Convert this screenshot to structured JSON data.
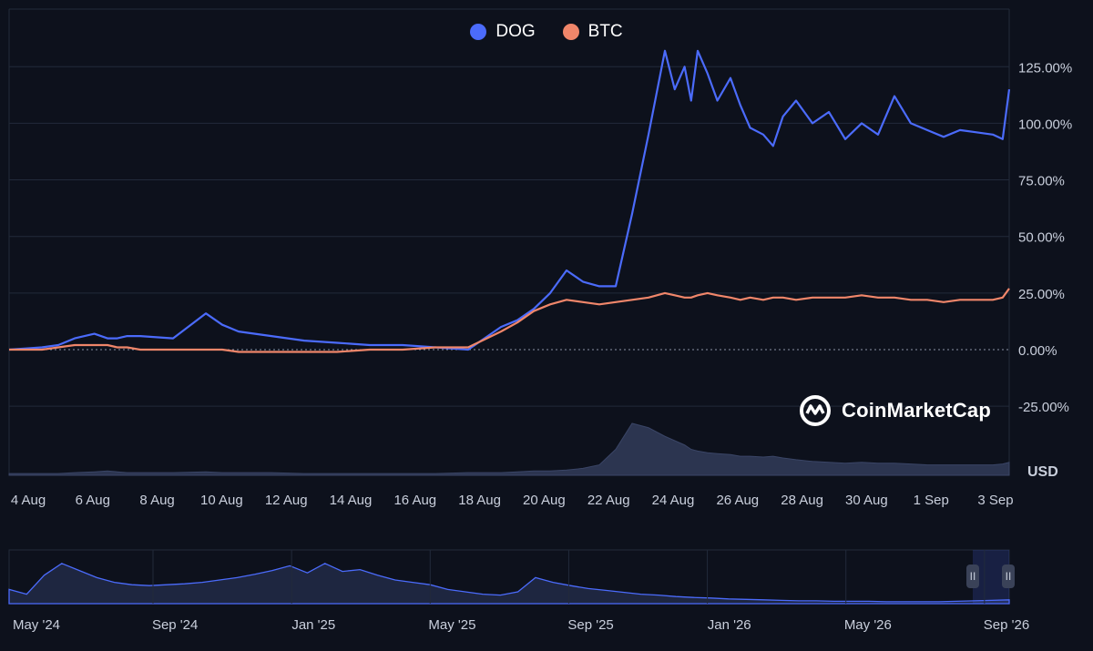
{
  "legend": [
    {
      "name": "DOG",
      "color": "#4b6bfb"
    },
    {
      "name": "BTC",
      "color": "#f0866a"
    }
  ],
  "brand": {
    "name": "CoinMarketCap",
    "icon": "coinmarketcap-logo-icon"
  },
  "unit": "USD",
  "navigator": {
    "labels": [
      "May '24",
      "Sep '24",
      "Jan '25",
      "May '25",
      "Sep '25",
      "Jan '26",
      "May '26",
      "Sep '26"
    ],
    "handle_left": "II",
    "handle_right": "II"
  },
  "colors": {
    "background": "#0d111c",
    "grid": "#222a3a",
    "dog": "#4b6bfb",
    "btc": "#f0866a",
    "volume": "#2c3550",
    "axis_text": "#c9cfdc"
  },
  "chart_data": {
    "type": "line",
    "title": "",
    "xlabel": "",
    "ylabel": "",
    "x_ticks": [
      "4 Aug",
      "6 Aug",
      "8 Aug",
      "10 Aug",
      "12 Aug",
      "14 Aug",
      "16 Aug",
      "18 Aug",
      "20 Aug",
      "22 Aug",
      "24 Aug",
      "26 Aug",
      "28 Aug",
      "30 Aug",
      "1 Sep",
      "3 Sep"
    ],
    "y_ticks": [
      "125.00%",
      "100.00%",
      "75.00%",
      "50.00%",
      "25.00%",
      "0.00%",
      "-25.00%"
    ],
    "ylim": [
      -30,
      145
    ],
    "x_range_days": [
      0,
      30.5
    ],
    "x": [
      0,
      1,
      1.5,
      2,
      2.6,
      3,
      3.3,
      3.6,
      4,
      5,
      6,
      6.5,
      7,
      8,
      9,
      10,
      11,
      12,
      13,
      14,
      15,
      15.5,
      16,
      16.5,
      17,
      17.5,
      18,
      18.5,
      19,
      19.5,
      20,
      20.3,
      20.6,
      20.8,
      21,
      21.3,
      21.6,
      22,
      22.3,
      22.6,
      23,
      23.3,
      23.6,
      24,
      24.5,
      25,
      25.5,
      26,
      26.5,
      27,
      27.5,
      28,
      28.5,
      29,
      29.5,
      30,
      30.3,
      30.5
    ],
    "series": [
      {
        "name": "DOG",
        "values": [
          0,
          1,
          2,
          5,
          7,
          5,
          5,
          6,
          6,
          5,
          16,
          11,
          8,
          6,
          4,
          3,
          2,
          2,
          1,
          0,
          10,
          13,
          18,
          25,
          35,
          30,
          28,
          28,
          60,
          95,
          132,
          115,
          125,
          110,
          132,
          122,
          110,
          120,
          108,
          98,
          95,
          90,
          103,
          110,
          100,
          105,
          93,
          100,
          95,
          112,
          100,
          97,
          94,
          97,
          96,
          95,
          93,
          115
        ]
      },
      {
        "name": "BTC",
        "values": [
          0,
          0,
          1,
          2,
          2,
          2,
          1,
          1,
          0,
          0,
          0,
          0,
          -1,
          -1,
          -1,
          -1,
          0,
          0,
          1,
          1,
          8,
          12,
          17,
          20,
          22,
          21,
          20,
          21,
          22,
          23,
          25,
          24,
          23,
          23,
          24,
          25,
          24,
          23,
          22,
          23,
          22,
          23,
          23,
          22,
          23,
          23,
          23,
          24,
          23,
          23,
          22,
          22,
          21,
          22,
          22,
          22,
          23,
          27
        ]
      }
    ],
    "volume": {
      "name": "Volume",
      "relative_values": [
        2,
        2,
        2,
        3,
        4,
        5,
        4,
        3,
        3,
        3,
        4,
        3,
        3,
        3,
        2,
        2,
        2,
        2,
        2,
        3,
        3,
        4,
        5,
        5,
        6,
        8,
        12,
        30,
        60,
        55,
        45,
        40,
        35,
        30,
        28,
        26,
        25,
        24,
        22,
        22,
        21,
        22,
        20,
        18,
        16,
        15,
        14,
        15,
        14,
        14,
        13,
        12,
        12,
        12,
        12,
        12,
        13,
        15
      ]
    },
    "navigator": {
      "type": "area",
      "relative_values": [
        30,
        20,
        60,
        85,
        70,
        55,
        45,
        40,
        38,
        40,
        42,
        45,
        50,
        55,
        62,
        70,
        80,
        65,
        85,
        68,
        72,
        60,
        50,
        45,
        40,
        30,
        25,
        20,
        18,
        25,
        55,
        45,
        38,
        32,
        28,
        24,
        20,
        18,
        15,
        13,
        12,
        10,
        9,
        8,
        7,
        6,
        6,
        5,
        5,
        5,
        4,
        4,
        4,
        4,
        5,
        6,
        7,
        8
      ]
    },
    "grid": true,
    "legend_position": "top-center"
  }
}
